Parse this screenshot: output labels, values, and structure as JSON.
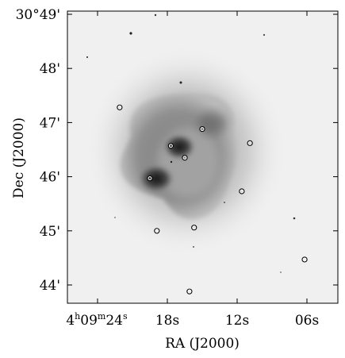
{
  "figure": {
    "x_axis_title": "RA (J2000)",
    "y_axis_title": "Dec (J2000)",
    "y_ticks": [
      {
        "label": "30°49'",
        "arcmin": 49
      },
      {
        "label": "48'",
        "arcmin": 48
      },
      {
        "label": "47'",
        "arcmin": 47
      },
      {
        "label": "46'",
        "arcmin": 46
      },
      {
        "label": "45'",
        "arcmin": 45
      },
      {
        "label": "44'",
        "arcmin": 44
      }
    ],
    "x_ticks": [
      {
        "label": "4h09m24s",
        "sec": 24
      },
      {
        "label": "18s",
        "sec": 18
      },
      {
        "label": "12s",
        "sec": 12
      },
      {
        "label": "06s",
        "sec": 6
      }
    ],
    "x_first_tick_parts": {
      "h": "4",
      "h_sup": "h",
      "m": "09",
      "m_sup": "m",
      "s": "24",
      "s_sup": "s"
    },
    "image": {
      "description_colors": {
        "background": "#f2f2f2",
        "halo": "#c8c8c8",
        "shell": "#8a8a8a",
        "core": "#2a2a2a"
      }
    },
    "markers": [
      {
        "ra_sec": 22.1,
        "dec_arcmin": 47.28
      },
      {
        "ra_sec": 15.0,
        "dec_arcmin": 46.88
      },
      {
        "ra_sec": 10.9,
        "dec_arcmin": 46.62
      },
      {
        "ra_sec": 17.7,
        "dec_arcmin": 46.57
      },
      {
        "ra_sec": 16.5,
        "dec_arcmin": 46.35
      },
      {
        "ra_sec": 19.5,
        "dec_arcmin": 45.97
      },
      {
        "ra_sec": 11.6,
        "dec_arcmin": 45.73
      },
      {
        "ra_sec": 18.9,
        "dec_arcmin": 45.0
      },
      {
        "ra_sec": 15.7,
        "dec_arcmin": 45.06
      },
      {
        "ra_sec": 6.2,
        "dec_arcmin": 44.47
      },
      {
        "ra_sec": 16.1,
        "dec_arcmin": 43.88
      }
    ]
  }
}
